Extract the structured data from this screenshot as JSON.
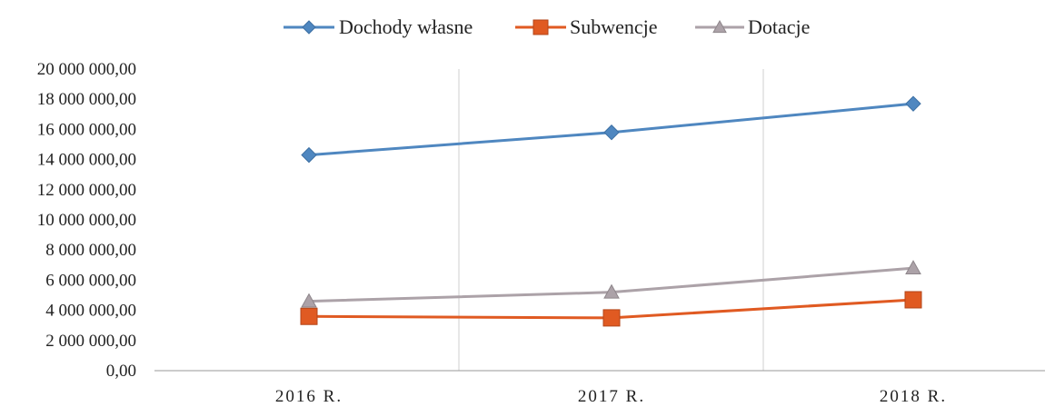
{
  "chart_data": {
    "type": "line",
    "title": "",
    "xlabel": "",
    "ylabel": "",
    "categories": [
      "2016 R.",
      "2017 R.",
      "2018 R."
    ],
    "series": [
      {
        "name": "Dochody własne",
        "values": [
          14300000,
          15800000,
          17700000
        ],
        "color": "#4f87c0",
        "marker": "diamond"
      },
      {
        "name": "Subwencje",
        "values": [
          3600000,
          3500000,
          4700000
        ],
        "color": "#e05a22",
        "marker": "square"
      },
      {
        "name": "Dotacje",
        "values": [
          4600000,
          5200000,
          6800000
        ],
        "color": "#aca2a8",
        "marker": "triangle"
      }
    ],
    "ylim": [
      0,
      20000000
    ],
    "yticks": [
      {
        "value": 0,
        "label": "0,00"
      },
      {
        "value": 2000000,
        "label": "2 000 000,00"
      },
      {
        "value": 4000000,
        "label": "4 000 000,00"
      },
      {
        "value": 6000000,
        "label": "6 000 000,00"
      },
      {
        "value": 8000000,
        "label": "8 000 000,00"
      },
      {
        "value": 10000000,
        "label": "10 000 000,00"
      },
      {
        "value": 12000000,
        "label": "12 000 000,00"
      },
      {
        "value": 14000000,
        "label": "14 000 000,00"
      },
      {
        "value": 16000000,
        "label": "16 000 000,00"
      },
      {
        "value": 18000000,
        "label": "18 000 000,00"
      },
      {
        "value": 20000000,
        "label": "20 000 000,00"
      }
    ],
    "grid": "vertical",
    "legend_position": "top"
  }
}
